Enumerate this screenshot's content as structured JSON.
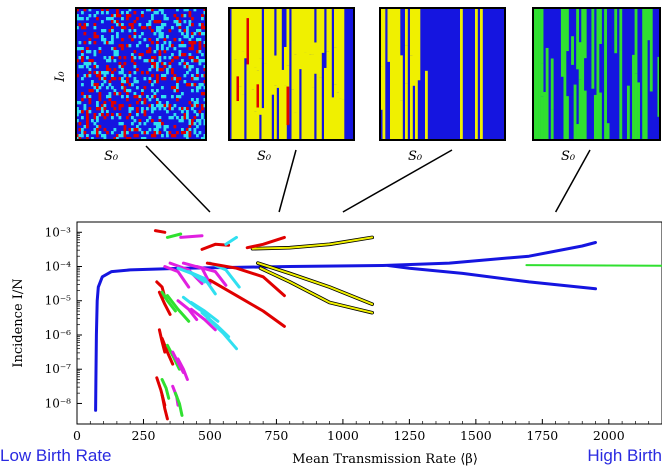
{
  "chart_data": {
    "type": "line",
    "xlabel": "Mean Transmission Rate  ⟨β⟩",
    "ylabel": "Incidence  I/N",
    "xlim": [
      0,
      2200
    ],
    "y_log": true,
    "ylim_exp": [
      -8.6,
      -2.7
    ],
    "x_ticks": [
      0,
      250,
      500,
      750,
      1000,
      1250,
      1500,
      1750,
      2000
    ],
    "y_ticks": [
      {
        "exp": -3,
        "label": "10⁻³"
      },
      {
        "exp": -4,
        "label": "10⁻⁴"
      },
      {
        "exp": -5,
        "label": "10⁻⁵"
      },
      {
        "exp": -6,
        "label": "10⁻⁶"
      },
      {
        "exp": -7,
        "label": "10⁻⁷"
      },
      {
        "exp": -8,
        "label": "10⁻⁸"
      }
    ],
    "grid": false,
    "colors": {
      "blue": "#1515e0",
      "red": "#e00000",
      "magenta": "#e020e0",
      "cyan": "#30e0f0",
      "green": "#30e030",
      "yellow": "#f0f000"
    },
    "series": [
      {
        "color": "blue",
        "width": 3,
        "points": [
          [
            70,
            -8.2
          ],
          [
            71,
            -7.3
          ],
          [
            73,
            -6.0
          ],
          [
            76,
            -5.0
          ],
          [
            80,
            -4.6
          ],
          [
            95,
            -4.3
          ],
          [
            130,
            -4.15
          ],
          [
            200,
            -4.1
          ],
          [
            400,
            -4.05
          ],
          [
            800,
            -4.0
          ],
          [
            1150,
            -3.97
          ],
          [
            1400,
            -3.9
          ],
          [
            1700,
            -3.7
          ],
          [
            1900,
            -3.4
          ],
          [
            1950,
            -3.3
          ]
        ]
      },
      {
        "color": "blue",
        "width": 3,
        "points": [
          [
            1170,
            -3.97
          ],
          [
            1250,
            -4.05
          ],
          [
            1450,
            -4.2
          ],
          [
            1700,
            -4.45
          ],
          [
            1950,
            -4.65
          ]
        ]
      },
      {
        "color": "green",
        "width": 2,
        "points": [
          [
            1690,
            -3.96
          ],
          [
            2200,
            -3.98
          ]
        ]
      },
      {
        "color": "yellow",
        "width": 2,
        "outline": true,
        "points": [
          [
            660,
            -3.48
          ],
          [
            800,
            -3.45
          ],
          [
            950,
            -3.35
          ],
          [
            1110,
            -3.15
          ]
        ]
      },
      {
        "color": "yellow",
        "width": 2,
        "outline": true,
        "points": [
          [
            680,
            -3.9
          ],
          [
            800,
            -4.2
          ],
          [
            950,
            -4.6
          ],
          [
            1110,
            -5.1
          ]
        ]
      },
      {
        "color": "yellow",
        "width": 2,
        "outline": true,
        "points": [
          [
            690,
            -4.05
          ],
          [
            800,
            -4.45
          ],
          [
            950,
            -5.05
          ],
          [
            1110,
            -5.35
          ]
        ]
      },
      {
        "color": "red",
        "width": 3,
        "points": [
          [
            295,
            -2.95
          ],
          [
            330,
            -3.0
          ]
        ]
      },
      {
        "color": "green",
        "width": 3,
        "points": [
          [
            340,
            -3.15
          ],
          [
            390,
            -3.05
          ]
        ]
      },
      {
        "color": "magenta",
        "width": 3,
        "points": [
          [
            390,
            -3.15
          ],
          [
            470,
            -3.1
          ]
        ]
      },
      {
        "color": "red",
        "width": 3,
        "points": [
          [
            470,
            -3.5
          ],
          [
            520,
            -3.35
          ],
          [
            570,
            -3.38
          ]
        ]
      },
      {
        "color": "cyan",
        "width": 3,
        "points": [
          [
            560,
            -3.35
          ],
          [
            600,
            -3.15
          ]
        ]
      },
      {
        "color": "red",
        "width": 3,
        "points": [
          [
            640,
            -3.45
          ],
          [
            700,
            -3.35
          ],
          [
            780,
            -3.15
          ]
        ]
      },
      {
        "color": "red",
        "width": 3,
        "points": [
          [
            300,
            -4.45
          ],
          [
            320,
            -4.6
          ],
          [
            330,
            -4.9
          ]
        ]
      },
      {
        "color": "magenta",
        "width": 3,
        "points": [
          [
            330,
            -4.0
          ],
          [
            380,
            -4.15
          ],
          [
            420,
            -4.6
          ]
        ]
      },
      {
        "color": "magenta",
        "width": 3,
        "points": [
          [
            350,
            -3.9
          ],
          [
            420,
            -4.1
          ],
          [
            470,
            -4.5
          ]
        ]
      },
      {
        "color": "cyan",
        "width": 3,
        "points": [
          [
            380,
            -4.05
          ],
          [
            430,
            -4.2
          ],
          [
            480,
            -4.45
          ]
        ]
      },
      {
        "color": "magenta",
        "width": 3,
        "points": [
          [
            400,
            -3.9
          ],
          [
            470,
            -4.05
          ],
          [
            500,
            -4.5
          ]
        ]
      },
      {
        "color": "cyan",
        "width": 3,
        "points": [
          [
            420,
            -4.15
          ],
          [
            480,
            -4.35
          ],
          [
            520,
            -4.8
          ]
        ]
      },
      {
        "color": "magenta",
        "width": 3,
        "points": [
          [
            450,
            -4.0
          ],
          [
            520,
            -4.15
          ],
          [
            560,
            -4.55
          ]
        ]
      },
      {
        "color": "cyan",
        "width": 3,
        "points": [
          [
            500,
            -3.9
          ],
          [
            560,
            -4.1
          ],
          [
            610,
            -4.6
          ]
        ]
      },
      {
        "color": "red",
        "width": 3,
        "points": [
          [
            490,
            -3.9
          ],
          [
            600,
            -4.05
          ],
          [
            700,
            -4.3
          ],
          [
            780,
            -4.85
          ]
        ]
      },
      {
        "color": "red",
        "width": 3,
        "points": [
          [
            500,
            -4.4
          ],
          [
            600,
            -4.85
          ],
          [
            700,
            -5.3
          ],
          [
            780,
            -5.75
          ]
        ]
      },
      {
        "color": "red",
        "width": 3,
        "points": [
          [
            310,
            -4.75
          ],
          [
            330,
            -5.1
          ],
          [
            350,
            -5.4
          ]
        ]
      },
      {
        "color": "green",
        "width": 3,
        "points": [
          [
            320,
            -4.75
          ],
          [
            340,
            -5.0
          ],
          [
            370,
            -5.3
          ]
        ]
      },
      {
        "color": "green",
        "width": 3,
        "points": [
          [
            340,
            -4.85
          ],
          [
            380,
            -5.25
          ],
          [
            420,
            -5.6
          ]
        ]
      },
      {
        "color": "magenta",
        "width": 3,
        "points": [
          [
            380,
            -5.0
          ],
          [
            420,
            -5.25
          ],
          [
            450,
            -5.55
          ]
        ]
      },
      {
        "color": "cyan",
        "width": 3,
        "points": [
          [
            400,
            -4.9
          ],
          [
            450,
            -5.2
          ],
          [
            500,
            -5.45
          ]
        ]
      },
      {
        "color": "cyan",
        "width": 3,
        "points": [
          [
            430,
            -5.05
          ],
          [
            480,
            -5.3
          ],
          [
            530,
            -5.6
          ]
        ]
      },
      {
        "color": "magenta",
        "width": 3,
        "points": [
          [
            430,
            -5.25
          ],
          [
            480,
            -5.55
          ],
          [
            520,
            -5.85
          ]
        ]
      },
      {
        "color": "cyan",
        "width": 3,
        "points": [
          [
            470,
            -5.35
          ],
          [
            530,
            -5.75
          ],
          [
            570,
            -6.05
          ]
        ]
      },
      {
        "color": "cyan",
        "width": 3,
        "points": [
          [
            490,
            -5.5
          ],
          [
            550,
            -5.95
          ],
          [
            600,
            -6.4
          ]
        ]
      },
      {
        "color": "red",
        "width": 3,
        "points": [
          [
            310,
            -5.85
          ],
          [
            320,
            -6.2
          ],
          [
            330,
            -6.5
          ]
        ]
      },
      {
        "color": "red",
        "width": 3,
        "points": [
          [
            320,
            -6.1
          ],
          [
            340,
            -6.5
          ],
          [
            360,
            -6.85
          ]
        ]
      },
      {
        "color": "green",
        "width": 3,
        "points": [
          [
            340,
            -6.3
          ],
          [
            360,
            -6.6
          ],
          [
            385,
            -7.0
          ]
        ]
      },
      {
        "color": "magenta",
        "width": 3,
        "points": [
          [
            360,
            -6.5
          ],
          [
            380,
            -6.8
          ],
          [
            400,
            -7.1
          ]
        ]
      },
      {
        "color": "magenta",
        "width": 3,
        "points": [
          [
            380,
            -6.7
          ],
          [
            400,
            -7.0
          ],
          [
            415,
            -7.3
          ]
        ]
      },
      {
        "color": "red",
        "width": 3,
        "points": [
          [
            300,
            -7.25
          ],
          [
            315,
            -7.6
          ],
          [
            330,
            -8.05
          ]
        ]
      },
      {
        "color": "green",
        "width": 3,
        "points": [
          [
            320,
            -7.3
          ],
          [
            335,
            -7.55
          ],
          [
            345,
            -7.85
          ]
        ]
      },
      {
        "color": "red",
        "width": 3,
        "points": [
          [
            320,
            -7.75
          ],
          [
            330,
            -8.15
          ],
          [
            340,
            -8.45
          ]
        ]
      },
      {
        "color": "magenta",
        "width": 3,
        "points": [
          [
            360,
            -7.5
          ],
          [
            375,
            -7.8
          ],
          [
            380,
            -8.05
          ]
        ]
      },
      {
        "color": "green",
        "width": 3,
        "points": [
          [
            370,
            -7.7
          ],
          [
            385,
            -8.0
          ],
          [
            395,
            -8.35
          ]
        ]
      }
    ],
    "insets": [
      {
        "xlabel": "S₀",
        "ylabel": "I₀",
        "scheme": "mixed"
      },
      {
        "xlabel": "S₀",
        "scheme": "yellow_red"
      },
      {
        "xlabel": "S₀",
        "scheme": "yellow"
      },
      {
        "xlabel": "S₀",
        "scheme": "green"
      }
    ],
    "connectors": [
      {
        "inset": 0,
        "to_x": 500
      },
      {
        "inset": 1,
        "to_x": 760
      },
      {
        "inset": 2,
        "to_x": 1000
      },
      {
        "inset": 3,
        "to_x": 1800
      }
    ]
  },
  "footer": {
    "left": "Low Birth Rate",
    "right": "High Birth"
  }
}
